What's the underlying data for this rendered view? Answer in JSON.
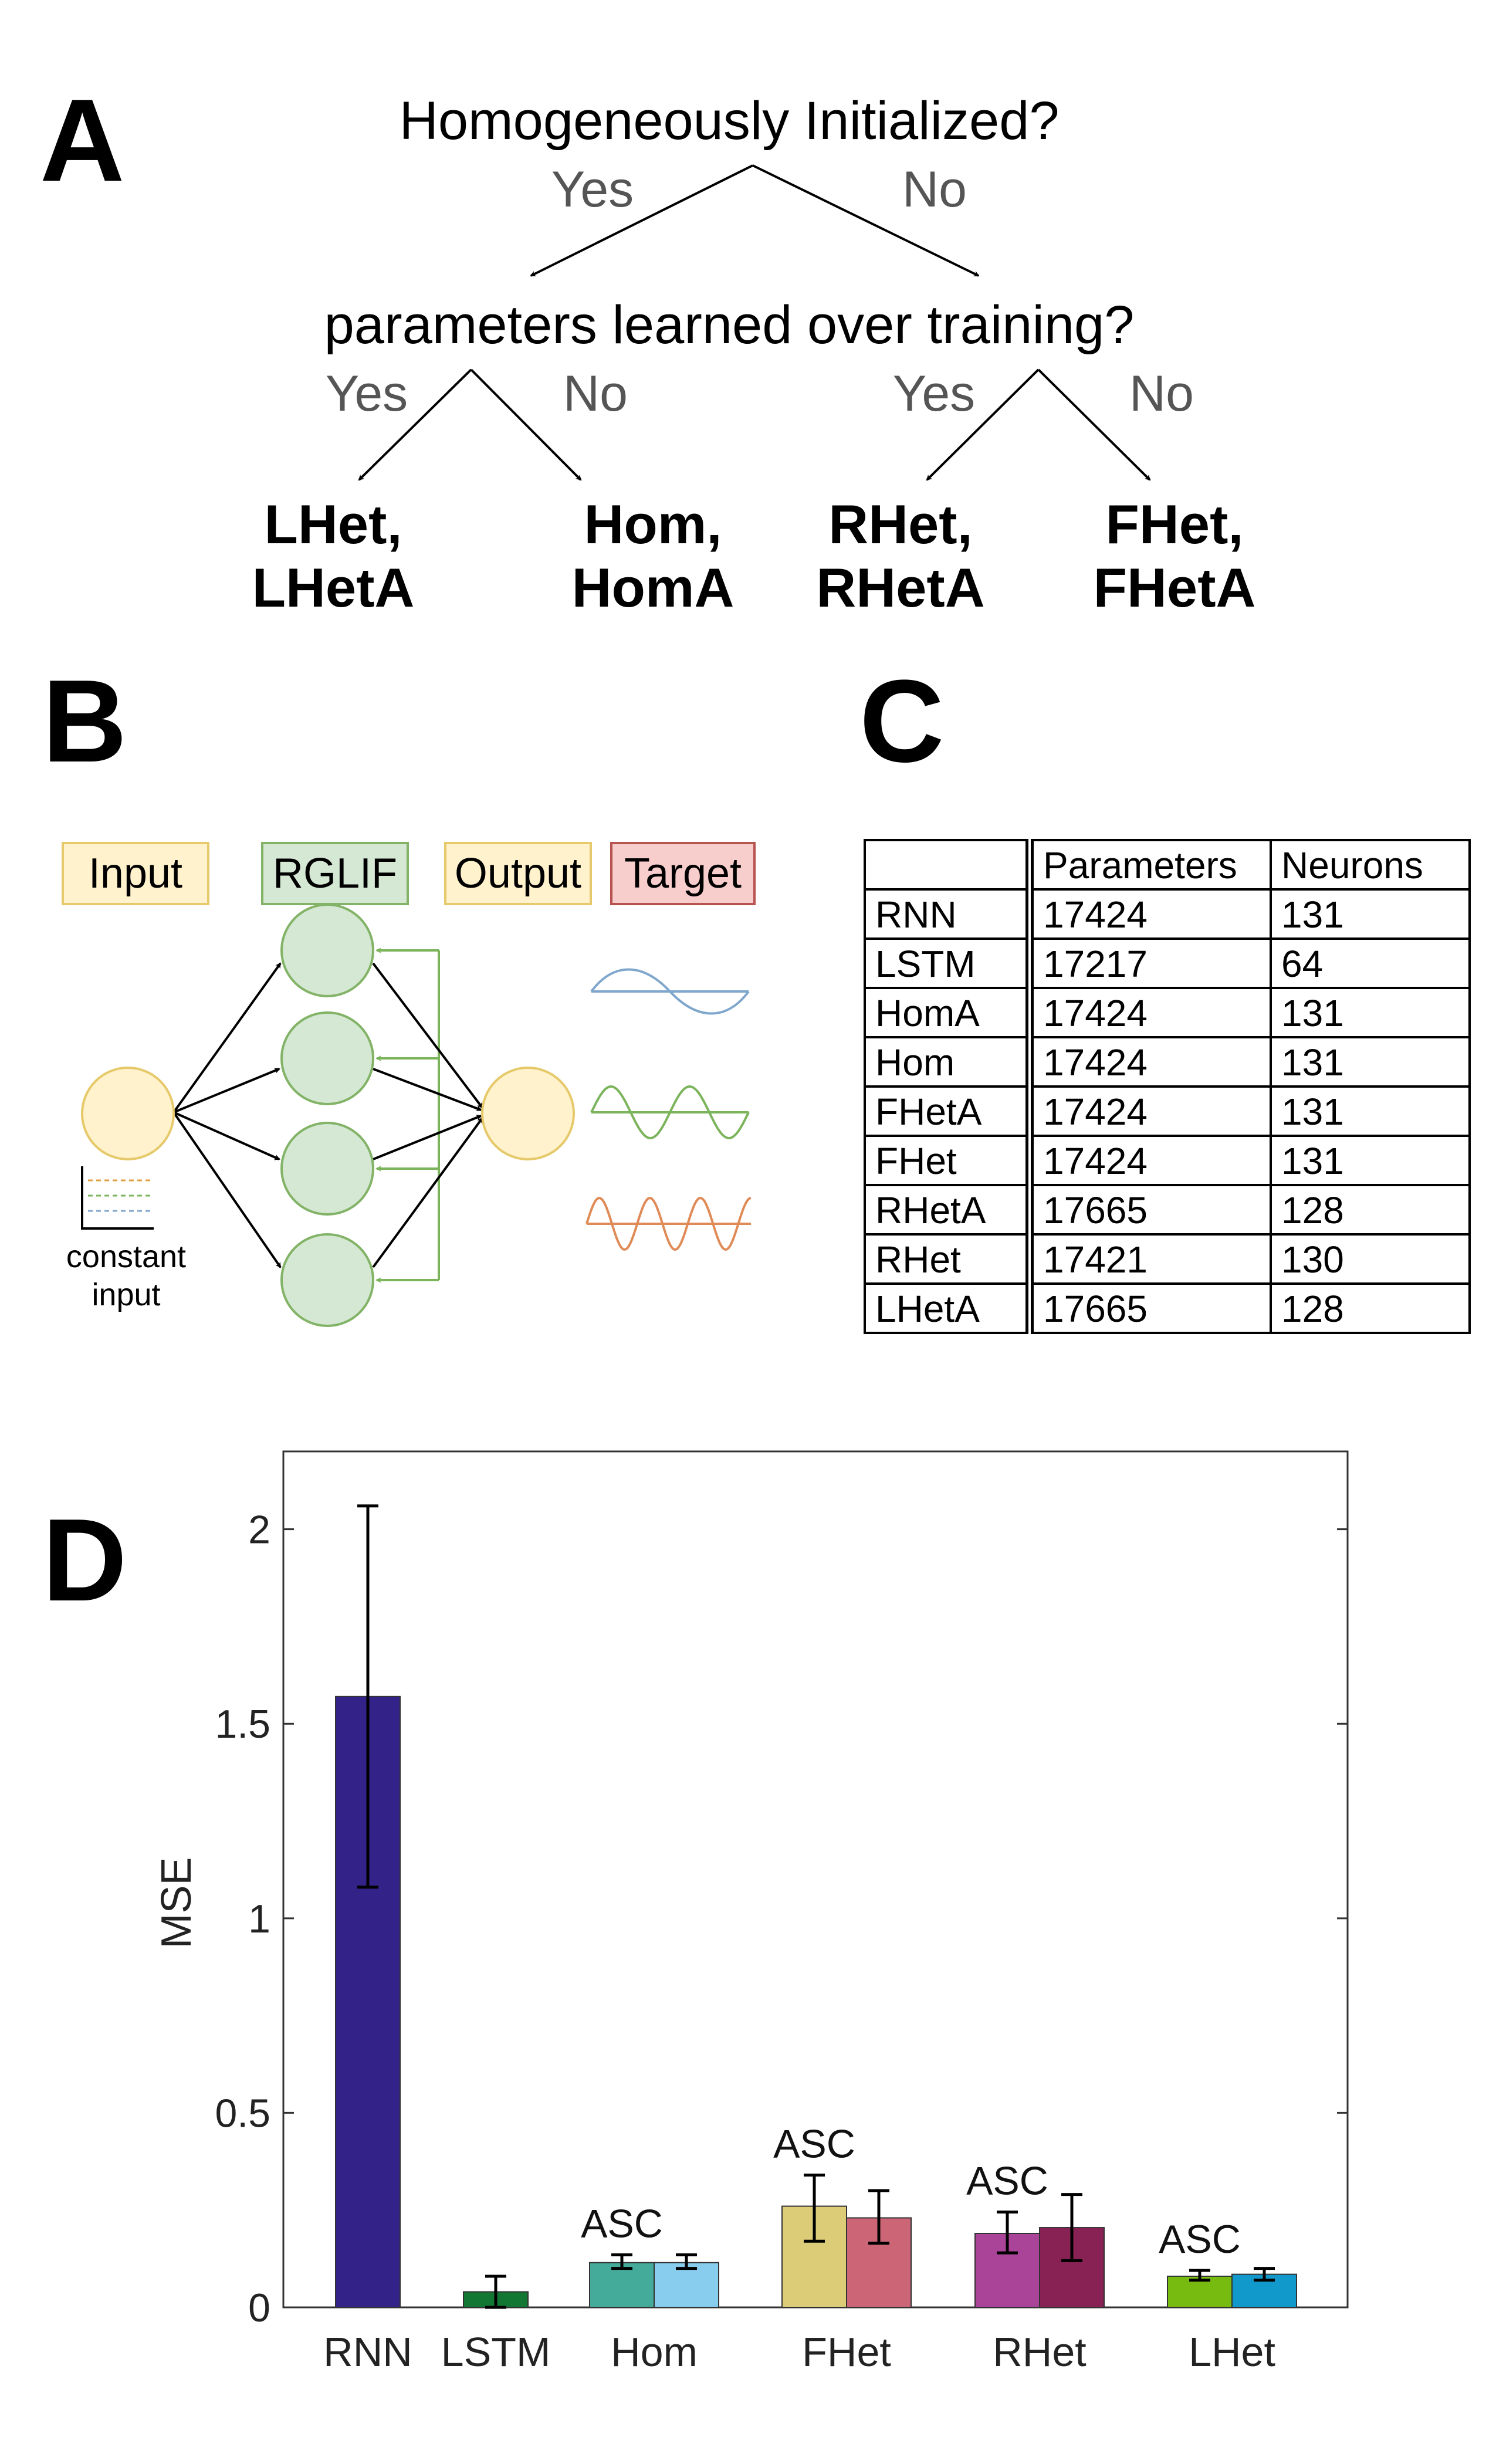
{
  "panels": {
    "a": "A",
    "b": "B",
    "c": "C",
    "d": "D"
  },
  "tree": {
    "q1": "Homogeneously Initialized?",
    "q2": "parameters learned over training?",
    "yes": "Yes",
    "no": "No",
    "leaves": [
      {
        "l1": "LHet,",
        "l2": "LHetA"
      },
      {
        "l1": "Hom,",
        "l2": "HomA"
      },
      {
        "l1": "RHet,",
        "l2": "RHetA"
      },
      {
        "l1": "FHet,",
        "l2": "FHetA"
      }
    ]
  },
  "network": {
    "input": "Input",
    "rglif": "RGLIF",
    "output": "Output",
    "target": "Target",
    "caption_1": "constant",
    "caption_2": "input",
    "colors": {
      "input": "#fff2cc",
      "input_border": "#e6c96b",
      "rglif": "#d5e8d4",
      "rglif_border": "#82b366",
      "target": "#f8cecc",
      "target_border": "#b85450",
      "blue": "#7fa6cc",
      "green": "#7cb45c",
      "orange": "#e08b57"
    }
  },
  "table": {
    "headers": [
      "",
      "Parameters",
      "Neurons"
    ],
    "rows": [
      [
        "RNN",
        "17424",
        "131"
      ],
      [
        "LSTM",
        "17217",
        "64"
      ],
      [
        "HomA",
        "17424",
        "131"
      ],
      [
        "Hom",
        "17424",
        "131"
      ],
      [
        "FHetA",
        "17424",
        "131"
      ],
      [
        "FHet",
        "17424",
        "131"
      ],
      [
        "RHetA",
        "17665",
        "128"
      ],
      [
        "RHet",
        "17421",
        "130"
      ],
      [
        "LHetA",
        "17665",
        "128"
      ]
    ]
  },
  "chart_data": {
    "type": "bar",
    "title": "",
    "xlabel": "",
    "ylabel": "MSE",
    "ylim": [
      0,
      2.2
    ],
    "yticks": [
      0,
      0.5,
      1,
      1.5,
      2
    ],
    "ytick_labels": [
      "0",
      "0.5",
      "1",
      "1.5",
      "2"
    ],
    "categories": [
      "RNN",
      "LSTM",
      "Hom",
      "FHet",
      "RHet",
      "LHet"
    ],
    "annotation": "ASC",
    "bars": [
      {
        "group": "RNN",
        "value": 1.57,
        "err_low": 1.08,
        "err_high": 2.06,
        "color": "#332288"
      },
      {
        "group": "LSTM",
        "value": 0.04,
        "err_low": 0.0,
        "err_high": 0.08,
        "color": "#117733"
      },
      {
        "group": "Hom",
        "value": 0.115,
        "err_low": 0.1,
        "err_high": 0.135,
        "color": "#44aa99",
        "annotated": true
      },
      {
        "group": "Hom",
        "value": 0.115,
        "err_low": 0.1,
        "err_high": 0.135,
        "color": "#88ccee"
      },
      {
        "group": "FHet",
        "value": 0.26,
        "err_low": 0.17,
        "err_high": 0.34,
        "color": "#ddcc77",
        "annotated": true
      },
      {
        "group": "FHet",
        "value": 0.23,
        "err_low": 0.165,
        "err_high": 0.3,
        "color": "#cc6677"
      },
      {
        "group": "RHet",
        "value": 0.19,
        "err_low": 0.14,
        "err_high": 0.245,
        "color": "#aa4499",
        "annotated": true
      },
      {
        "group": "RHet",
        "value": 0.205,
        "err_low": 0.12,
        "err_high": 0.29,
        "color": "#882255"
      },
      {
        "group": "LHet",
        "value": 0.08,
        "err_low": 0.07,
        "err_high": 0.095,
        "color": "#77bb11",
        "annotated": true
      },
      {
        "group": "LHet",
        "value": 0.085,
        "err_low": 0.07,
        "err_high": 0.1,
        "color": "#1199cc"
      }
    ]
  }
}
